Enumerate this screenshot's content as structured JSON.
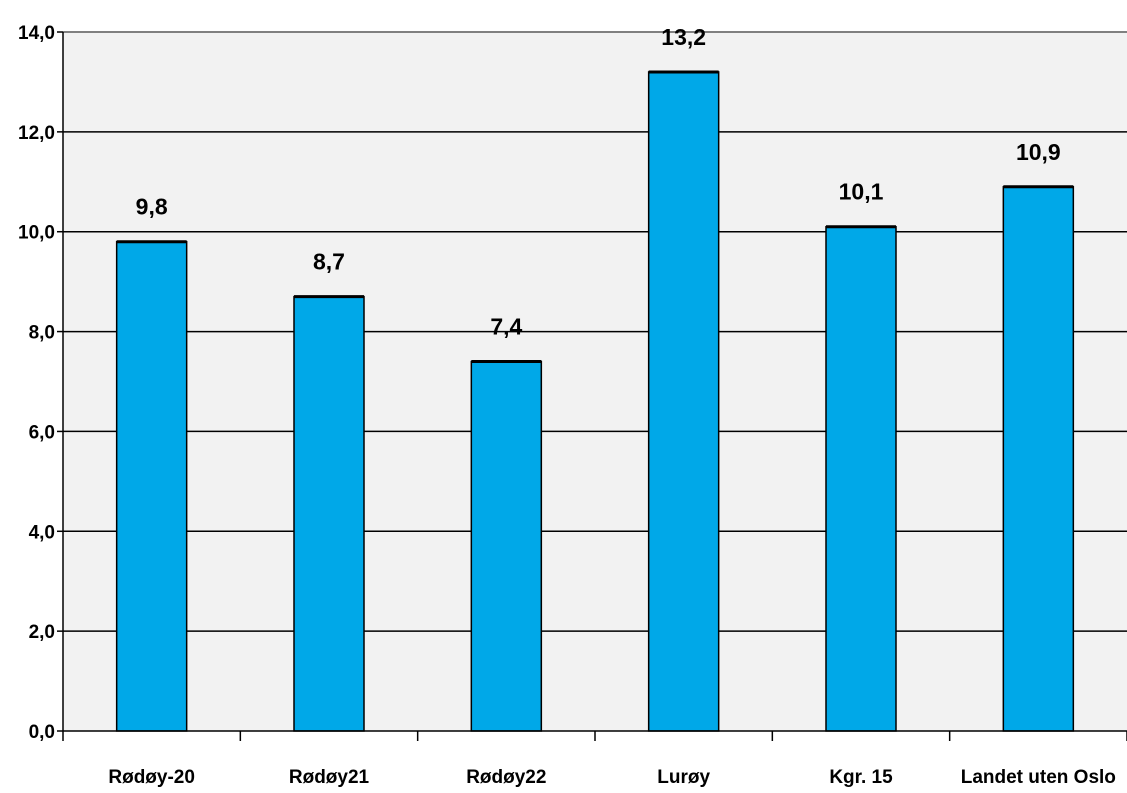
{
  "chart_data": {
    "type": "bar",
    "categories": [
      "Rødøy-20",
      "Rødøy21",
      "Rødøy22",
      "Lurøy",
      "Kgr. 15",
      "Landet uten Oslo"
    ],
    "values": [
      9.8,
      8.7,
      7.4,
      13.2,
      10.1,
      10.9
    ],
    "data_labels": [
      "9,8",
      "8,7",
      "7,4",
      "13,2",
      "10,1",
      "10,9"
    ],
    "y_ticks": [
      0,
      2,
      4,
      6,
      8,
      10,
      12,
      14
    ],
    "y_tick_labels": [
      "0,0",
      "2,0",
      "4,0",
      "6,0",
      "8,0",
      "10,0",
      "12,0",
      "14,0"
    ],
    "ylim": [
      0,
      14
    ],
    "grid": true,
    "legend": "none",
    "title": "",
    "xlabel": "",
    "ylabel": ""
  },
  "colors": {
    "bar_fill": "#00A8E8",
    "bar_stroke": "#000000",
    "plot_background": "#F2F2F2",
    "gridline": "#000000",
    "axis": "#000000"
  }
}
